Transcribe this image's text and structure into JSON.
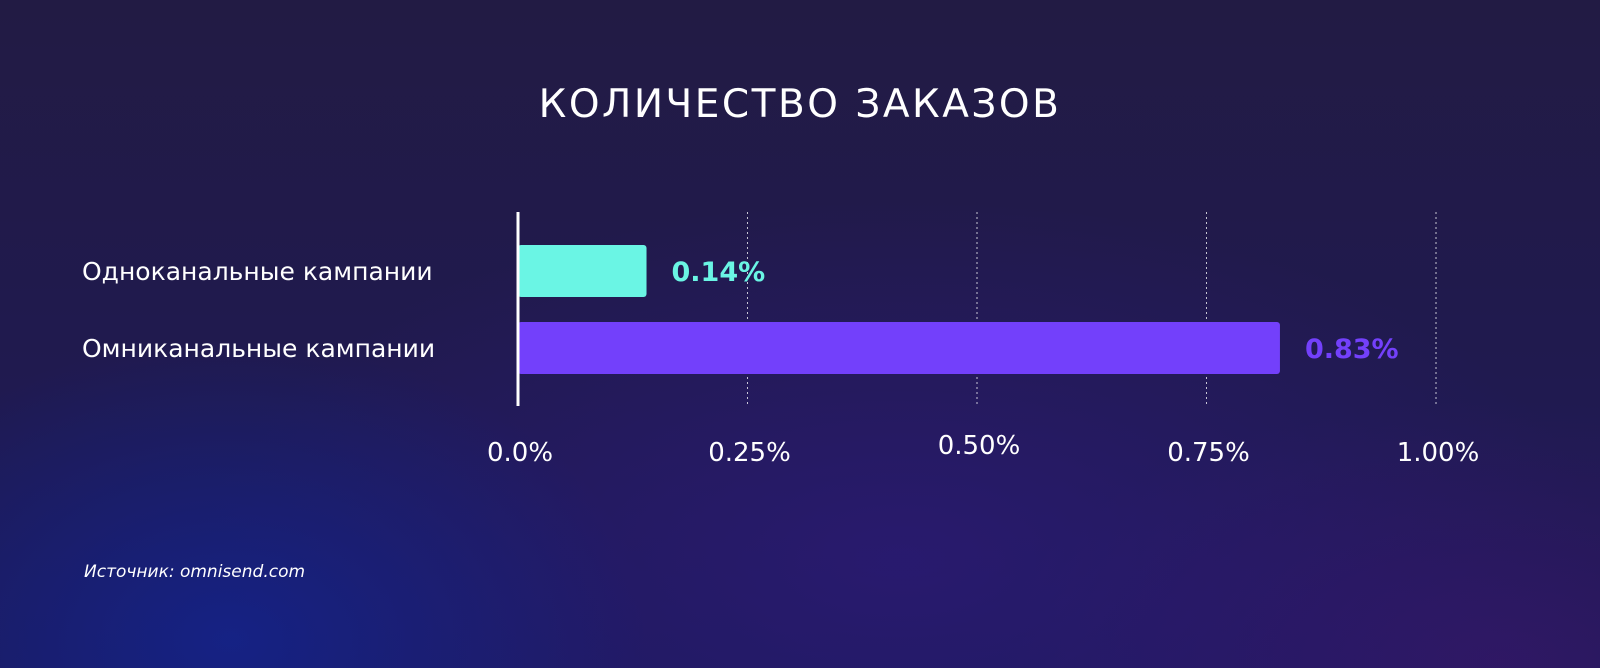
{
  "chart_data": {
    "type": "bar",
    "orientation": "horizontal",
    "title": "КОЛИЧЕСТВО ЗАКАЗОВ",
    "categories": [
      "Одноканальные кампании",
      "Омниканальные кампании"
    ],
    "values": [
      0.14,
      0.83
    ],
    "value_labels": [
      "0.14%",
      "0.83%"
    ],
    "bar_colors": [
      "#6af5e4",
      "#7340fb"
    ],
    "label_colors": [
      "#6af5e4",
      "#7340fb"
    ],
    "x_ticks": [
      0,
      0.25,
      0.5,
      0.75,
      1.0
    ],
    "x_tick_labels": [
      "0.0%",
      "0.25%",
      "0.50%",
      "0.75%",
      "1.00%"
    ],
    "xlim": [
      0,
      1.0
    ],
    "grid": "vertical-dotted",
    "xlabel": "",
    "ylabel": ""
  },
  "source": "Источник: omnisend.com"
}
